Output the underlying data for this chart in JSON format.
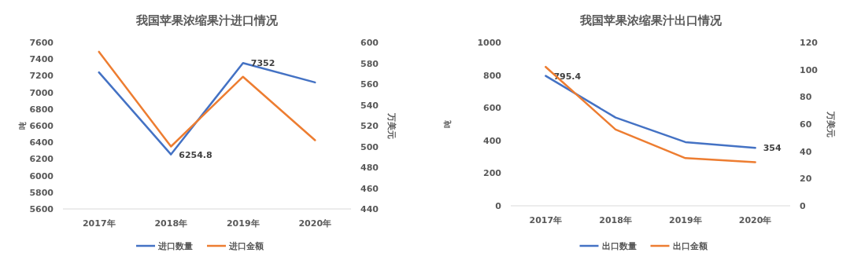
{
  "chart_data": [
    {
      "type": "line",
      "title": "我国苹果浓缩果汁进口情况",
      "ylabel": "吨",
      "y2label": "万美元",
      "categories": [
        "2017年",
        "2018年",
        "2019年",
        "2020年"
      ],
      "series": [
        {
          "name": "进口数量",
          "color": "#4472c4",
          "values": [
            7240,
            6254.8,
            7352,
            7120
          ],
          "value_labels": [
            null,
            "6254.8",
            "7352",
            null
          ]
        },
        {
          "name": "进口金额",
          "color": "#ed7d31",
          "axis": "y2",
          "values": [
            591,
            500,
            567,
            506
          ]
        }
      ],
      "ylim": [
        5600,
        7600
      ],
      "yticks": [
        5600,
        5800,
        6000,
        6200,
        6400,
        6600,
        6800,
        7000,
        7200,
        7400,
        7600
      ],
      "y2lim": [
        440,
        600
      ],
      "y2ticks": [
        440,
        460,
        480,
        500,
        520,
        540,
        560,
        580,
        600
      ],
      "grid": false,
      "legend": "bottom",
      "marker": "none",
      "line_style": "solid"
    },
    {
      "type": "line",
      "title": "我国苹果浓缩果汁出口情况",
      "ylabel": "吨",
      "y2label": "万美元",
      "categories": [
        "2017年",
        "2018年",
        "2019年",
        "2020年"
      ],
      "series": [
        {
          "name": "出口数量",
          "color": "#4472c4",
          "values": [
            795.4,
            540,
            390,
            354
          ],
          "value_labels": [
            "795.4",
            null,
            null,
            "354"
          ]
        },
        {
          "name": "出口金额",
          "color": "#ed7d31",
          "axis": "y2",
          "values": [
            102,
            56,
            35,
            32
          ]
        }
      ],
      "ylim": [
        0,
        1000
      ],
      "yticks": [
        0,
        200,
        400,
        600,
        800,
        1000
      ],
      "y2lim": [
        0,
        120
      ],
      "y2ticks": [
        0,
        20,
        40,
        60,
        80,
        100,
        120
      ],
      "grid": false,
      "legend": "bottom",
      "marker": "none",
      "line_style": "solid"
    }
  ]
}
